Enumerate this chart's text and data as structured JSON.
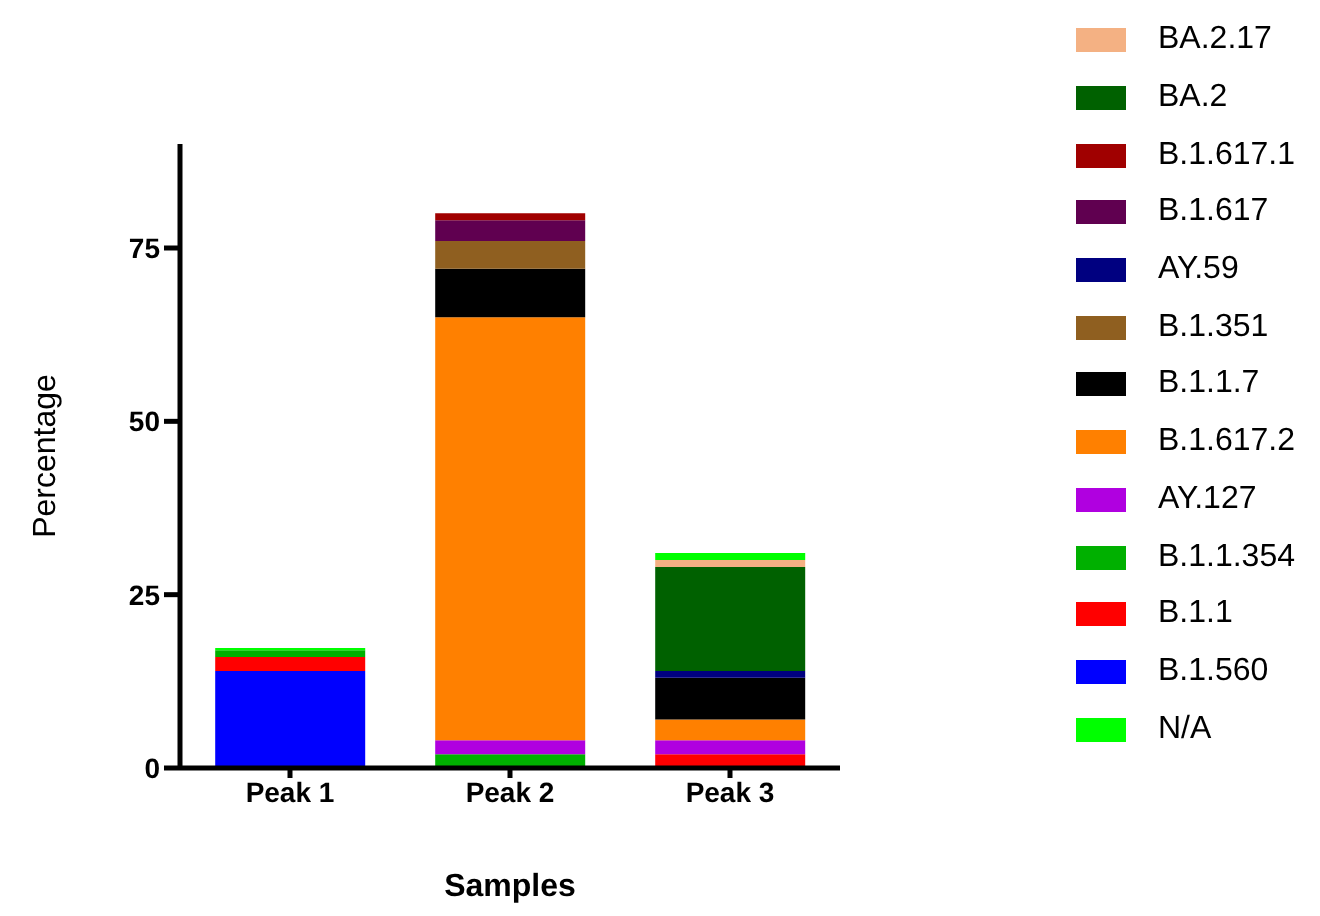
{
  "chart_data": {
    "type": "bar",
    "stacked": true,
    "xlabel": "Samples",
    "ylabel": "Percentage",
    "categories": [
      "Peak 1",
      "Peak 2",
      "Peak 3"
    ],
    "ylim": [
      0,
      90
    ],
    "yticks": [
      0,
      25,
      50,
      75
    ],
    "grid": false,
    "legend": "right",
    "series": [
      {
        "name": "B.1.560",
        "color": "#0000ff",
        "values": [
          14,
          0,
          0
        ]
      },
      {
        "name": "B.1.1",
        "color": "#ff0000",
        "values": [
          2,
          0,
          2
        ]
      },
      {
        "name": "B.1.1.354",
        "color": "#00b000",
        "values": [
          1,
          2,
          0
        ]
      },
      {
        "name": "AY.127",
        "color": "#b000e0",
        "values": [
          0,
          2,
          2
        ]
      },
      {
        "name": "B.1.617.2",
        "color": "#ff8000",
        "values": [
          0,
          61,
          3
        ]
      },
      {
        "name": "B.1.1.7",
        "color": "#000000",
        "values": [
          0,
          7,
          6
        ]
      },
      {
        "name": "B.1.351",
        "color": "#8f5f20",
        "values": [
          0,
          4,
          0
        ]
      },
      {
        "name": "AY.59",
        "color": "#000080",
        "values": [
          0,
          0,
          1
        ]
      },
      {
        "name": "B.1.617",
        "color": "#600050",
        "values": [
          0,
          3,
          0
        ]
      },
      {
        "name": "B.1.617.1",
        "color": "#a00000",
        "values": [
          0,
          1,
          0
        ]
      },
      {
        "name": "BA.2",
        "color": "#006100",
        "values": [
          0,
          0,
          15
        ]
      },
      {
        "name": "BA.2.17",
        "color": "#f4b183",
        "values": [
          0,
          0,
          1
        ]
      },
      {
        "name": "N/A",
        "color": "#00ff00",
        "values": [
          0.3,
          0,
          1
        ]
      }
    ]
  }
}
